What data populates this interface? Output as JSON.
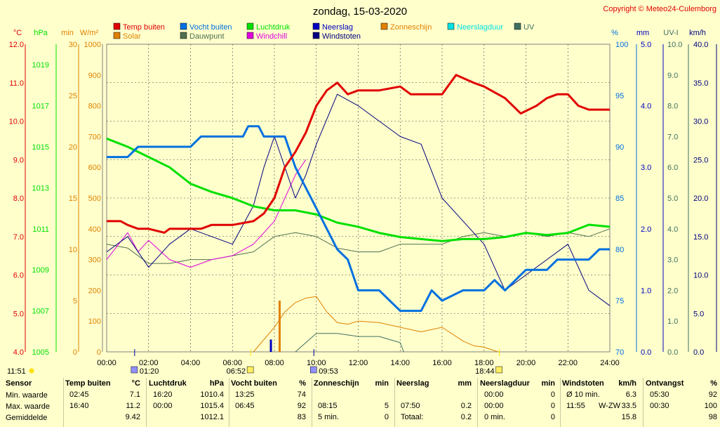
{
  "title": "zondag, 15-03-2020",
  "copyright": "Copyright © Meteo24-Culemborg",
  "colors": {
    "temp": "#e00000",
    "vocht": "#0070e0",
    "luchtdruk": "#00e000",
    "neerslag": "#0000c0",
    "zonneschijn": "#e08000",
    "neerslagduur": "#00e0e0",
    "uv": "#407060",
    "solar": "#e08000",
    "dauwpunt": "#507050",
    "windchill": "#e000e0",
    "windstoten": "#000080",
    "grid": "#404040"
  },
  "legend": {
    "row1": [
      "Temp buiten",
      "Vocht buiten",
      "Luchtdruk",
      "Neerslag",
      "Zonneschijn",
      "Neerslagduur",
      "UV"
    ],
    "row2": [
      "Solar",
      "Dauwpunt",
      "Windchill",
      "Windstoten"
    ]
  },
  "axes": {
    "units_left": [
      "°C",
      "hPa",
      "min",
      "W/m²"
    ],
    "units_right": [
      "%",
      "mm",
      "UV-I",
      "km/h"
    ],
    "temp_ticks": [
      "12.0",
      "11.0",
      "10.0",
      "9.0",
      "8.0",
      "7.0",
      "6.0",
      "5.0",
      "4.0"
    ],
    "hpa_ticks": [
      "1019",
      "1017",
      "1015",
      "1013",
      "1011",
      "1009",
      "1007",
      "1005"
    ],
    "min_ticks": [
      "30",
      "25",
      "20",
      "15",
      "10",
      "5",
      "0"
    ],
    "solar_ticks": [
      "1000",
      "900",
      "800",
      "700",
      "600",
      "500",
      "400",
      "300",
      "200",
      "100",
      "0"
    ],
    "vocht_ticks": [
      "100",
      "95",
      "90",
      "85",
      "80",
      "75",
      "70"
    ],
    "mm_ticks": [
      "5.0",
      "4.0",
      "3.0",
      "2.0",
      "1.0",
      "0.0"
    ],
    "uv_ticks": [
      "10.0",
      "9.0",
      "8.0",
      "7.0",
      "6.0",
      "5.0",
      "4.0",
      "3.0",
      "2.0",
      "1.0",
      "0.0"
    ],
    "kmh_ticks": [
      "40.0",
      "35.0",
      "30.0",
      "25.0",
      "20.0",
      "15.0",
      "10.0",
      "5.0",
      "0.0"
    ],
    "x_ticks": [
      "00:00",
      "02:00",
      "04:00",
      "06:00",
      "08:00",
      "10:00",
      "12:00",
      "14:00",
      "16:00",
      "18:00",
      "20:00",
      "22:00",
      "24:00"
    ]
  },
  "events": {
    "daylength": "11:51",
    "moonset": "01:20",
    "sunrise": "06:52",
    "moonrise": "09:53",
    "sunset": "18:44"
  },
  "chart_data": {
    "type": "line",
    "title": "zondag, 15-03-2020",
    "x_range": [
      "00:00",
      "24:00"
    ],
    "grid": true,
    "series": [
      {
        "name": "Temp buiten",
        "unit": "°C",
        "ylim": [
          4,
          12
        ],
        "points": [
          [
            "00:00",
            7.4
          ],
          [
            "00:40",
            7.4
          ],
          [
            "01:00",
            7.3
          ],
          [
            "01:30",
            7.2
          ],
          [
            "02:00",
            7.2
          ],
          [
            "02:45",
            7.1
          ],
          [
            "03:00",
            7.2
          ],
          [
            "04:00",
            7.2
          ],
          [
            "04:30",
            7.2
          ],
          [
            "05:00",
            7.3
          ],
          [
            "06:00",
            7.3
          ],
          [
            "07:00",
            7.4
          ],
          [
            "07:30",
            7.6
          ],
          [
            "08:00",
            8.0
          ],
          [
            "08:30",
            8.8
          ],
          [
            "09:00",
            9.2
          ],
          [
            "09:30",
            9.7
          ],
          [
            "10:00",
            10.4
          ],
          [
            "10:30",
            10.8
          ],
          [
            "11:00",
            11.0
          ],
          [
            "11:30",
            10.7
          ],
          [
            "12:00",
            10.8
          ],
          [
            "13:00",
            10.8
          ],
          [
            "14:00",
            10.9
          ],
          [
            "14:30",
            10.7
          ],
          [
            "15:00",
            10.7
          ],
          [
            "16:00",
            10.7
          ],
          [
            "16:40",
            11.2
          ],
          [
            "17:30",
            11.0
          ],
          [
            "18:00",
            10.9
          ],
          [
            "19:00",
            10.6
          ],
          [
            "19:45",
            10.2
          ],
          [
            "20:30",
            10.4
          ],
          [
            "21:00",
            10.6
          ],
          [
            "21:30",
            10.7
          ],
          [
            "22:00",
            10.7
          ],
          [
            "22:30",
            10.4
          ],
          [
            "23:00",
            10.3
          ],
          [
            "24:00",
            10.3
          ]
        ]
      },
      {
        "name": "Vocht buiten",
        "unit": "%",
        "ylim": [
          70,
          100
        ],
        "points": [
          [
            "00:00",
            89
          ],
          [
            "01:00",
            89
          ],
          [
            "01:30",
            90
          ],
          [
            "03:00",
            90
          ],
          [
            "04:00",
            90
          ],
          [
            "04:30",
            91
          ],
          [
            "06:30",
            91
          ],
          [
            "06:45",
            92
          ],
          [
            "07:15",
            92
          ],
          [
            "07:30",
            91
          ],
          [
            "08:30",
            91
          ],
          [
            "09:00",
            88
          ],
          [
            "09:30",
            86
          ],
          [
            "10:00",
            84
          ],
          [
            "10:30",
            82
          ],
          [
            "11:00",
            80
          ],
          [
            "11:30",
            79
          ],
          [
            "12:00",
            76
          ],
          [
            "13:00",
            76
          ],
          [
            "13:30",
            75
          ],
          [
            "14:00",
            74
          ],
          [
            "15:00",
            74
          ],
          [
            "15:30",
            76
          ],
          [
            "16:00",
            75
          ],
          [
            "17:00",
            76
          ],
          [
            "18:00",
            76
          ],
          [
            "18:30",
            77
          ],
          [
            "19:00",
            76
          ],
          [
            "20:00",
            78
          ],
          [
            "21:00",
            78
          ],
          [
            "21:30",
            79
          ],
          [
            "22:00",
            79
          ],
          [
            "23:00",
            79
          ],
          [
            "23:30",
            80
          ],
          [
            "24:00",
            80
          ]
        ]
      },
      {
        "name": "Luchtdruk",
        "unit": "hPa",
        "ylim": [
          1005,
          1020
        ],
        "points": [
          [
            "00:00",
            1015.4
          ],
          [
            "01:00",
            1015.0
          ],
          [
            "02:00",
            1014.5
          ],
          [
            "03:00",
            1014.0
          ],
          [
            "04:00",
            1013.2
          ],
          [
            "05:00",
            1012.8
          ],
          [
            "06:00",
            1012.5
          ],
          [
            "07:00",
            1012.1
          ],
          [
            "08:00",
            1011.9
          ],
          [
            "09:00",
            1011.9
          ],
          [
            "10:00",
            1011.7
          ],
          [
            "11:00",
            1011.3
          ],
          [
            "12:00",
            1011.1
          ],
          [
            "13:00",
            1010.8
          ],
          [
            "14:00",
            1010.6
          ],
          [
            "15:00",
            1010.5
          ],
          [
            "16:00",
            1010.4
          ],
          [
            "17:00",
            1010.5
          ],
          [
            "18:00",
            1010.5
          ],
          [
            "19:00",
            1010.6
          ],
          [
            "20:00",
            1010.8
          ],
          [
            "21:00",
            1010.7
          ],
          [
            "22:00",
            1010.8
          ],
          [
            "23:00",
            1011.2
          ],
          [
            "24:00",
            1011.1
          ]
        ]
      },
      {
        "name": "Windstoten",
        "unit": "km/h",
        "ylim": [
          0,
          40
        ],
        "points": [
          [
            "00:00",
            13
          ],
          [
            "01:00",
            15
          ],
          [
            "02:00",
            11
          ],
          [
            "03:00",
            14
          ],
          [
            "04:00",
            16
          ],
          [
            "05:00",
            15
          ],
          [
            "06:00",
            14
          ],
          [
            "07:00",
            19
          ],
          [
            "07:30",
            24
          ],
          [
            "08:00",
            28
          ],
          [
            "09:00",
            20
          ],
          [
            "09:30",
            23
          ],
          [
            "10:00",
            27
          ],
          [
            "11:00",
            33.5
          ],
          [
            "12:00",
            32
          ],
          [
            "13:00",
            30
          ],
          [
            "14:00",
            28
          ],
          [
            "15:00",
            27
          ],
          [
            "16:00",
            20
          ],
          [
            "17:00",
            17
          ],
          [
            "18:00",
            14
          ],
          [
            "19:00",
            8
          ],
          [
            "20:00",
            10
          ],
          [
            "21:00",
            12
          ],
          [
            "22:00",
            14
          ],
          [
            "23:00",
            8
          ],
          [
            "24:00",
            6
          ]
        ]
      },
      {
        "name": "Dauwpunt",
        "unit": "°C",
        "ylim": [
          4,
          12
        ],
        "points": [
          [
            "00:00",
            6.8
          ],
          [
            "01:00",
            6.7
          ],
          [
            "02:00",
            6.3
          ],
          [
            "03:00",
            6.3
          ],
          [
            "04:00",
            6.4
          ],
          [
            "05:00",
            6.4
          ],
          [
            "06:00",
            6.5
          ],
          [
            "07:00",
            6.6
          ],
          [
            "08:00",
            7.0
          ],
          [
            "09:00",
            7.1
          ],
          [
            "10:00",
            7.0
          ],
          [
            "11:00",
            6.7
          ],
          [
            "12:00",
            6.6
          ],
          [
            "13:00",
            6.6
          ],
          [
            "14:00",
            6.8
          ],
          [
            "15:00",
            6.8
          ],
          [
            "16:00",
            6.8
          ],
          [
            "17:00",
            7.0
          ],
          [
            "18:00",
            7.1
          ],
          [
            "19:00",
            7.0
          ],
          [
            "20:00",
            7.1
          ],
          [
            "21:00",
            7.0
          ],
          [
            "22:00",
            7.1
          ],
          [
            "23:00",
            7.0
          ],
          [
            "24:00",
            7.2
          ]
        ]
      },
      {
        "name": "Windchill",
        "unit": "°C",
        "ylim": [
          4,
          12
        ],
        "points": [
          [
            "00:00",
            6.4
          ],
          [
            "01:00",
            7.1
          ],
          [
            "01:30",
            6.6
          ],
          [
            "02:00",
            6.9
          ],
          [
            "03:00",
            6.4
          ],
          [
            "04:00",
            6.2
          ],
          [
            "05:00",
            6.4
          ],
          [
            "06:00",
            6.5
          ],
          [
            "07:00",
            6.8
          ],
          [
            "08:00",
            7.4
          ],
          [
            "09:00",
            8.6
          ],
          [
            "09:30",
            9.0
          ]
        ]
      },
      {
        "name": "Solar",
        "unit": "W/m²",
        "ylim": [
          0,
          1000
        ],
        "points": [
          [
            "07:00",
            0
          ],
          [
            "07:30",
            40
          ],
          [
            "08:00",
            80
          ],
          [
            "08:30",
            130
          ],
          [
            "09:00",
            160
          ],
          [
            "09:30",
            175
          ],
          [
            "10:00",
            180
          ],
          [
            "10:30",
            130
          ],
          [
            "11:00",
            95
          ],
          [
            "11:30",
            90
          ],
          [
            "12:00",
            100
          ],
          [
            "13:00",
            95
          ],
          [
            "14:00",
            80
          ],
          [
            "15:00",
            65
          ],
          [
            "16:00",
            80
          ],
          [
            "17:00",
            35
          ],
          [
            "17:30",
            20
          ],
          [
            "18:00",
            15
          ],
          [
            "18:40",
            0
          ]
        ]
      },
      {
        "name": "UV",
        "unit": "UV-I",
        "ylim": [
          0,
          10
        ],
        "points": [
          [
            "09:00",
            0
          ],
          [
            "09:30",
            0.3
          ],
          [
            "10:00",
            0.6
          ],
          [
            "11:00",
            0.6
          ],
          [
            "12:00",
            0.5
          ],
          [
            "13:00",
            0.5
          ],
          [
            "14:00",
            0.3
          ],
          [
            "14:10",
            0
          ]
        ]
      },
      {
        "name": "Zonneschijn",
        "unit": "min",
        "ylim": [
          0,
          30
        ],
        "bars": [
          [
            "08:15",
            5
          ]
        ]
      },
      {
        "name": "Neerslag",
        "unit": "mm",
        "ylim": [
          0,
          5
        ],
        "bars": [
          [
            "07:50",
            0.2
          ]
        ]
      }
    ]
  },
  "table": {
    "row_labels": {
      "title": "Sensor",
      "min": "Min. waarde",
      "max": "Max. waarde",
      "avg": "Gemiddelde"
    },
    "columns": [
      {
        "title": "Temp buiten",
        "unit": "°C",
        "min_t": "02:45",
        "min_v": "7.1",
        "max_t": "16:40",
        "max_v": "11.2",
        "avg_t": "",
        "avg_v": "9.42"
      },
      {
        "title": "Luchtdruk",
        "unit": "hPa",
        "min_t": "16:20",
        "min_v": "1010.4",
        "max_t": "00:00",
        "max_v": "1015.4",
        "avg_t": "",
        "avg_v": "1012.1"
      },
      {
        "title": "Vocht buiten",
        "unit": "%",
        "min_t": "13:25",
        "min_v": "74",
        "max_t": "06:45",
        "max_v": "92",
        "avg_t": "",
        "avg_v": "83"
      },
      {
        "title": "Zonneschijn",
        "unit": "min",
        "min_t": "",
        "min_v": "",
        "max_t": "08:15",
        "max_v": "5",
        "avg_t": "5 min.",
        "avg_v": "0"
      },
      {
        "title": "Neerslag",
        "unit": "mm",
        "min_t": "",
        "min_v": "",
        "max_t": "07:50",
        "max_v": "0.2",
        "avg_t": "Totaal:",
        "avg_v": "0.2"
      },
      {
        "title": "Neerslagduur",
        "unit": "min",
        "min_t": "00:00",
        "min_v": "0",
        "max_t": "00:00",
        "max_v": "0",
        "avg_t": "0 min.",
        "avg_v": "0"
      },
      {
        "title": "Windstoten",
        "unit": "km/h",
        "min_t": "Ø 10 min.",
        "min_v": "6.3",
        "max_t": "11:55",
        "max_mid": "W-ZW",
        "max_v": "33.5",
        "avg_t": "",
        "avg_v": "15.8"
      },
      {
        "title": "Ontvangst",
        "unit": "%",
        "min_t": "05:30",
        "min_v": "92",
        "max_t": "00:30",
        "max_v": "100",
        "avg_t": "",
        "avg_v": "98"
      }
    ]
  }
}
